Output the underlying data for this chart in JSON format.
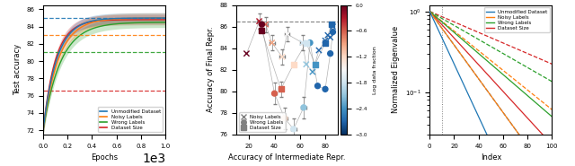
{
  "fig1": {
    "xlabel": "Epochs",
    "ylabel": "Test accuracy",
    "xlim": [
      0,
      1000
    ],
    "ylim": [
      71.5,
      86.5
    ],
    "colors": {
      "unmodified": "#1f77b4",
      "noisy": "#ff7f0e",
      "wrong": "#2ca02c",
      "size": "#d62728"
    },
    "dashed_vals": {
      "unmodified": 85.0,
      "noisy": 83.0,
      "wrong": 81.0,
      "size": 76.6
    },
    "curve_finals": {
      "unmodified": 85.0,
      "noisy": 85.0,
      "wrong": 84.5,
      "size": 84.8
    },
    "speeds": {
      "unmodified": 0.009,
      "noisy": 0.008,
      "wrong": 0.007,
      "size": 0.01
    },
    "legend_labels": [
      "Unmodified Dataset",
      "Noisy Labels",
      "Wrong Labels",
      "Dataset Size"
    ]
  },
  "fig2": {
    "xlabel": "Accuracy of Intermediate Repr.",
    "ylabel": "Accuracy of Final Repr.",
    "xlim": [
      10,
      90
    ],
    "ylim": [
      76,
      88
    ],
    "dashed_y": 86.5,
    "colorbar_label": "Log data fraction",
    "colorbar_ticks": [
      0.0,
      -0.6,
      -1.2,
      -1.8,
      -2.4,
      -3.0
    ],
    "noisy_x": [
      18,
      28,
      33,
      38,
      46,
      50,
      62,
      65,
      70,
      75,
      80,
      82,
      84,
      86
    ],
    "noisy_y": [
      83.5,
      86.5,
      86.2,
      84.5,
      83.2,
      85.3,
      84.5,
      82.5,
      81.8,
      83.8,
      84.7,
      85.2,
      85.0,
      86.0
    ],
    "noisy_c": [
      0.0,
      -0.3,
      -0.6,
      -0.9,
      -1.2,
      -1.5,
      -1.8,
      -2.1,
      -2.4,
      -2.7,
      -2.7,
      -2.7,
      -2.7,
      -2.7
    ],
    "wrong_x": [
      30,
      40,
      48,
      55,
      63,
      68,
      74,
      80,
      84,
      86
    ],
    "wrong_y": [
      86.2,
      79.8,
      77.5,
      76.5,
      78.5,
      84.5,
      80.5,
      80.2,
      83.5,
      85.5
    ],
    "wrong_c": [
      0.0,
      -0.6,
      -1.2,
      -1.8,
      -2.1,
      -2.4,
      -2.7,
      -2.7,
      -2.7,
      -2.7
    ],
    "size_x": [
      30,
      45,
      55,
      65,
      72,
      80,
      85
    ],
    "size_y": [
      85.6,
      80.2,
      82.5,
      84.5,
      82.5,
      84.5,
      86.2
    ],
    "size_c": [
      0.0,
      -0.6,
      -1.2,
      -1.8,
      -2.4,
      -2.7,
      -2.7
    ],
    "noisy_xerr": [
      2,
      2,
      2,
      2,
      2,
      2,
      2,
      2,
      2,
      2,
      2,
      2,
      2,
      2
    ],
    "noisy_yerr": [
      0.8,
      0.8,
      0.8,
      0.8,
      0.8,
      0.8,
      0.8,
      0.8,
      0.8,
      0.8,
      0.8,
      0.8,
      0.8,
      0.8
    ],
    "wrong_xerr": [
      2,
      2,
      2,
      2,
      2,
      2,
      2,
      2,
      2,
      2
    ],
    "wrong_yerr": [
      1.0,
      1.0,
      1.0,
      1.0,
      1.0,
      1.0,
      1.0,
      1.0,
      1.0,
      1.0
    ],
    "size_xerr": [
      2,
      2,
      2,
      2,
      2,
      2,
      2
    ],
    "size_yerr": [
      0.8,
      0.8,
      0.8,
      0.8,
      0.8,
      0.8,
      0.8
    ]
  },
  "fig3": {
    "xlabel": "Index",
    "ylabel": "Normalized Eigenvalue",
    "xlim": [
      0,
      100
    ],
    "dotted_x": 10,
    "colors": {
      "unmodified": "#1f77b4",
      "noisy": "#ff7f0e",
      "wrong": "#2ca02c",
      "size": "#d62728"
    },
    "legend_labels": [
      "Unmodified Dataset",
      "Noisy Labels",
      "Wrong Labels",
      "Dataset Size"
    ],
    "solid_decays": {
      "unmodified": 0.075,
      "noisy": 0.048,
      "wrong": 0.03,
      "size": 0.038
    },
    "dashed_decays": {
      "unmodified": 0.048,
      "noisy": 0.028,
      "wrong": 0.02,
      "size": 0.015
    }
  }
}
